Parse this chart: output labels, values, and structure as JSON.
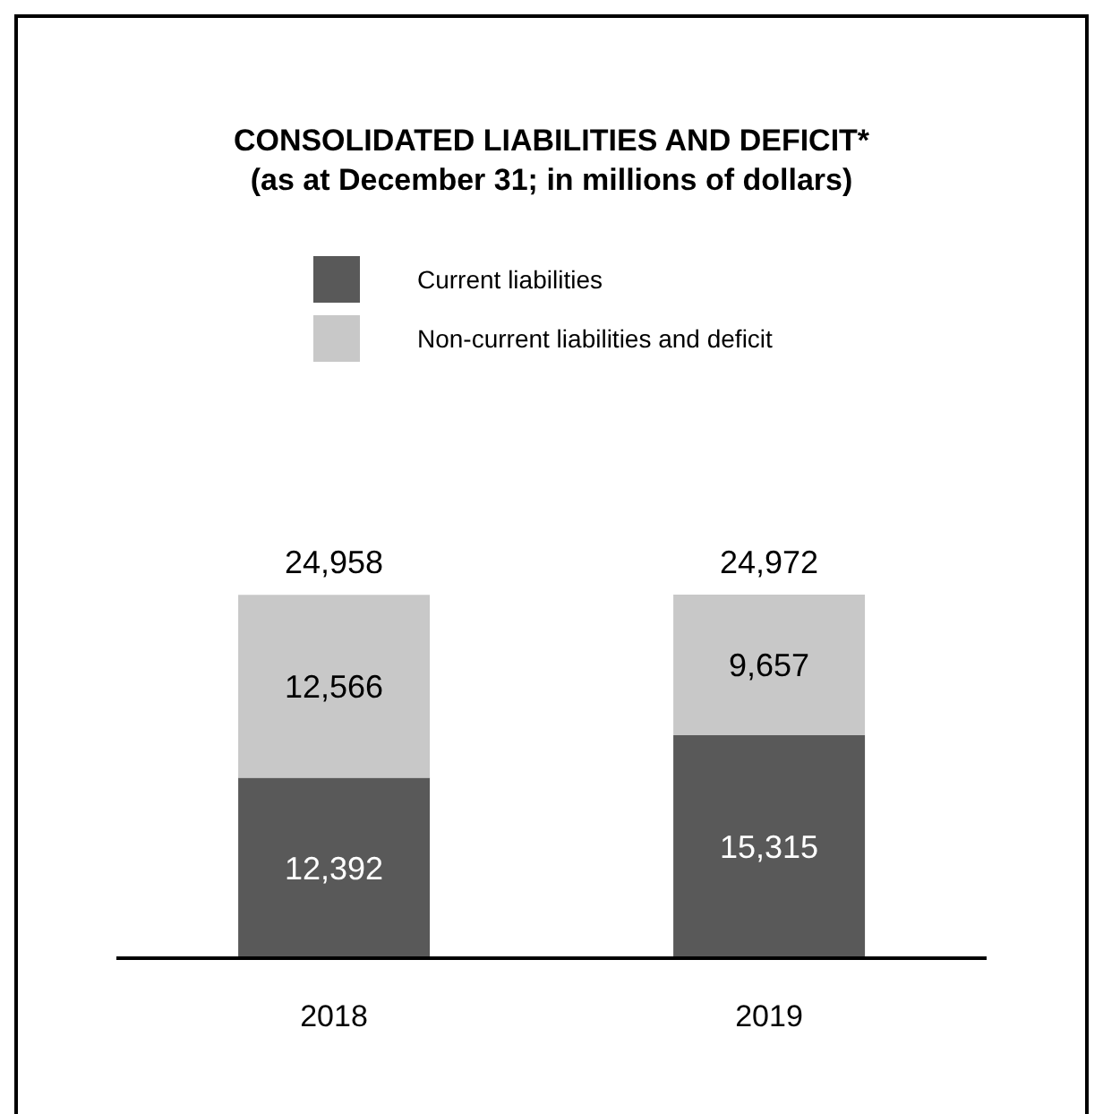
{
  "chart_data": {
    "type": "bar",
    "title": "CONSOLIDATED LIABILITIES AND DEFICIT*",
    "subtitle": "(as at December 31; in millions of dollars)",
    "categories": [
      "2018",
      "2019"
    ],
    "series": [
      {
        "name": "Current liabilities",
        "color": "#595959",
        "values": [
          12392,
          15315
        ],
        "value_labels": [
          "12,392",
          "15,315"
        ]
      },
      {
        "name": "Non-current liabilities and deficit",
        "color": "#c8c8c8",
        "values": [
          12566,
          9657
        ],
        "value_labels": [
          "12,566",
          "9,657"
        ]
      }
    ],
    "stacked": true,
    "totals": [
      "24,958",
      "24,972"
    ],
    "legend": "top",
    "grid": false
  }
}
